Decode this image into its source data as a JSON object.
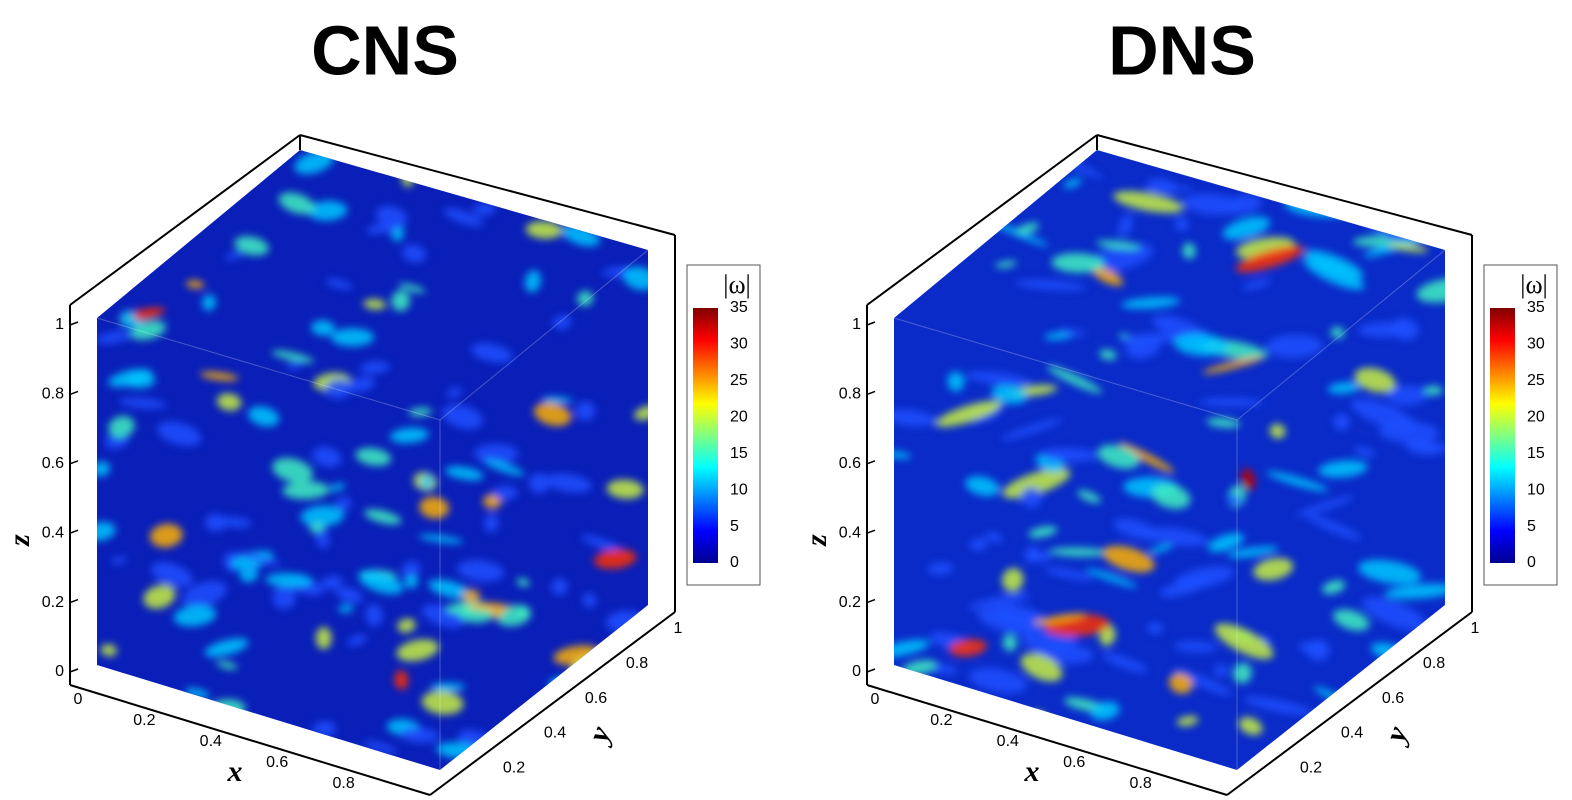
{
  "panels": [
    {
      "title": "CNS",
      "x_axis": {
        "label": "x",
        "ticks": [
          0,
          0.2,
          0.4,
          0.6,
          0.8
        ]
      },
      "y_axis": {
        "label": "y",
        "ticks": [
          0.2,
          0.4,
          0.6,
          0.8,
          1
        ]
      },
      "z_axis": {
        "label": "z",
        "ticks": [
          0,
          0.2,
          0.4,
          0.6,
          0.8,
          1
        ]
      },
      "colorbar": {
        "label": "|ω|",
        "ticks": [
          0,
          5,
          10,
          15,
          20,
          25,
          30,
          35
        ]
      }
    },
    {
      "title": "DNS",
      "x_axis": {
        "label": "x",
        "ticks": [
          0,
          0.2,
          0.4,
          0.6,
          0.8
        ]
      },
      "y_axis": {
        "label": "y",
        "ticks": [
          0.2,
          0.4,
          0.6,
          0.8,
          1
        ]
      },
      "z_axis": {
        "label": "z",
        "ticks": [
          0,
          0.2,
          0.4,
          0.6,
          0.8,
          1
        ]
      },
      "colorbar": {
        "label": "|ω|",
        "ticks": [
          0,
          5,
          10,
          15,
          20,
          25,
          30,
          35
        ]
      }
    }
  ]
}
